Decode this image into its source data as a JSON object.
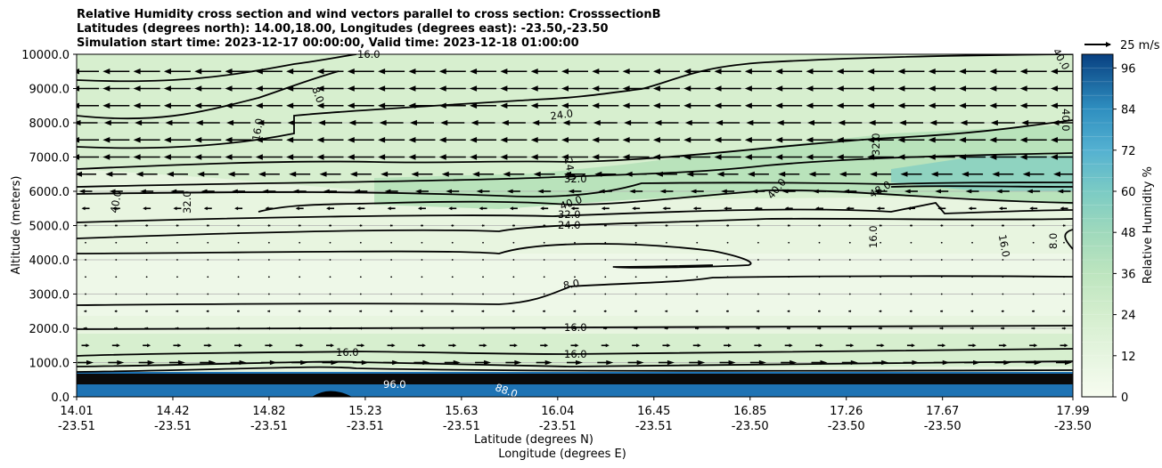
{
  "chart_data": {
    "type": "heatmap",
    "title_lines": [
      "Relative Humidity cross section and wind vectors parallel to cross section: CrosssectionB",
      "Latitudes (degrees north): 14.00,18.00, Longitudes (degrees east): -23.50,-23.50",
      "Simulation start time: 2023-12-17 00:00:00, Valid time: 2023-12-18 01:00:00"
    ],
    "ylabel": "Altitude (meters)",
    "xlabel": "Latitude (degrees N)",
    "xlabel2": "Longitude (degrees E)",
    "ylim": [
      0,
      10000
    ],
    "yticks": [
      "0.0",
      "1000.0",
      "2000.0",
      "3000.0",
      "4000.0",
      "5000.0",
      "6000.0",
      "7000.0",
      "8000.0",
      "9000.0",
      "10000.0"
    ],
    "xticks_lat": [
      "14.01",
      "14.42",
      "14.82",
      "15.23",
      "15.63",
      "16.04",
      "16.45",
      "16.85",
      "17.26",
      "17.67",
      "17.99"
    ],
    "xticks_lon": [
      "-23.51",
      "-23.51",
      "-23.51",
      "-23.51",
      "-23.51",
      "-23.51",
      "-23.51",
      "-23.50",
      "-23.50",
      "-23.50",
      "-23.50"
    ],
    "grid": "horizontal",
    "colorbar": {
      "label": "Relative Humidity %",
      "range": [
        0,
        100
      ],
      "ticks": [
        "0",
        "12",
        "24",
        "36",
        "48",
        "60",
        "72",
        "84",
        "96"
      ],
      "colormap": "GnBu"
    },
    "quiver_key": "25 m/s",
    "contour_labels": [
      "8.0",
      "16.0",
      "24.0",
      "32.0",
      "40.0",
      "48.0",
      "88.0",
      "96.0"
    ],
    "wind_rows": [
      {
        "altitude": 9500,
        "u": -1.0
      },
      {
        "altitude": 9000,
        "u": -1.0
      },
      {
        "altitude": 8500,
        "u": -1.0
      },
      {
        "altitude": 8000,
        "u": -0.9
      },
      {
        "altitude": 7500,
        "u": -1.0
      },
      {
        "altitude": 7000,
        "u": -1.0
      },
      {
        "altitude": 6500,
        "u": -0.8
      },
      {
        "altitude": 6000,
        "u": -0.5
      },
      {
        "altitude": 5500,
        "u": -0.3
      },
      {
        "altitude": 5000,
        "u": -0.1
      },
      {
        "altitude": 4500,
        "u": 0.0
      },
      {
        "altitude": 4000,
        "u": 0.0
      },
      {
        "altitude": 3500,
        "u": 0.0
      },
      {
        "altitude": 3000,
        "u": 0.0
      },
      {
        "altitude": 2500,
        "u": 0.1
      },
      {
        "altitude": 2000,
        "u": 0.15
      },
      {
        "altitude": 1500,
        "u": 0.3
      },
      {
        "altitude": 1000,
        "u": 0.6
      }
    ]
  }
}
